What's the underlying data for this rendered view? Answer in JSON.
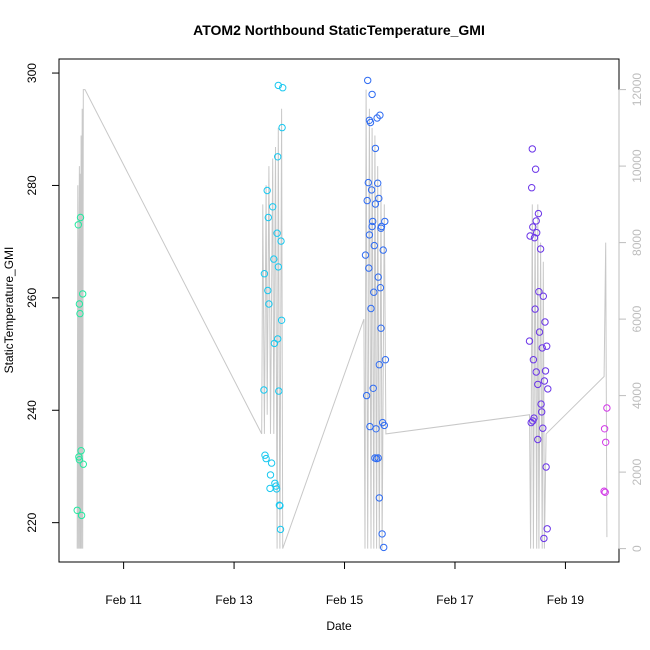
{
  "chart_data": {
    "type": "scatter",
    "title": "ATOM2 Northbound StaticTemperature_GMI",
    "xlabel": "Date",
    "ylabel": "StaticTemperature_GMI",
    "xlim_days": [
      9.83,
      19.97
    ],
    "ylim": [
      213.0,
      302.5
    ],
    "y2lim": [
      -350,
      12800
    ],
    "x_ticks": [
      {
        "day": 11,
        "label": "Feb 11"
      },
      {
        "day": 13,
        "label": "Feb 13"
      },
      {
        "day": 15,
        "label": "Feb 15"
      },
      {
        "day": 17,
        "label": "Feb 17"
      },
      {
        "day": 19,
        "label": "Feb 19"
      }
    ],
    "y_ticks": [
      220,
      240,
      260,
      280,
      300
    ],
    "y2_ticks": [
      0,
      2000,
      4000,
      6000,
      8000,
      10000,
      12000
    ],
    "grid": false,
    "legend": "none",
    "colors": {
      "secondary_axis": "#bdbdbd",
      "altitude_line": "#c8c8c8"
    },
    "series": [
      {
        "color": "#22e8a0",
        "points": [
          [
            10.16,
            222.2
          ],
          [
            10.18,
            273.0
          ],
          [
            10.2,
            258.9
          ],
          [
            10.22,
            274.3
          ],
          [
            10.21,
            257.2
          ],
          [
            10.26,
            260.7
          ],
          [
            10.19,
            231.7
          ],
          [
            10.2,
            231.2
          ],
          [
            10.23,
            232.8
          ],
          [
            10.27,
            230.4
          ],
          [
            10.24,
            221.3
          ]
        ]
      },
      {
        "color": "#18c8f0",
        "points": [
          [
            13.54,
            243.6
          ],
          [
            13.55,
            264.3
          ],
          [
            13.56,
            232.0
          ],
          [
            13.58,
            231.4
          ],
          [
            13.6,
            279.1
          ],
          [
            13.61,
            261.3
          ],
          [
            13.62,
            274.3
          ],
          [
            13.63,
            258.9
          ],
          [
            13.65,
            226.1
          ],
          [
            13.66,
            228.5
          ],
          [
            13.68,
            230.6
          ],
          [
            13.7,
            276.2
          ],
          [
            13.72,
            266.9
          ],
          [
            13.73,
            251.9
          ],
          [
            13.74,
            227.0
          ],
          [
            13.76,
            226.5
          ],
          [
            13.77,
            226.0
          ],
          [
            13.78,
            271.5
          ],
          [
            13.79,
            285.1
          ],
          [
            13.79,
            252.7
          ],
          [
            13.8,
            265.5
          ],
          [
            13.8,
            297.8
          ],
          [
            13.81,
            243.4
          ],
          [
            13.82,
            223.1
          ],
          [
            13.83,
            223.0
          ],
          [
            13.84,
            218.8
          ],
          [
            13.85,
            270.1
          ],
          [
            13.86,
            256.0
          ],
          [
            13.87,
            290.3
          ],
          [
            13.88,
            297.4
          ]
        ]
      },
      {
        "color": "#2f6cf2",
        "points": [
          [
            15.38,
            267.6
          ],
          [
            15.4,
            242.6
          ],
          [
            15.41,
            277.3
          ],
          [
            15.42,
            298.7
          ],
          [
            15.43,
            280.5
          ],
          [
            15.44,
            265.3
          ],
          [
            15.45,
            271.2
          ],
          [
            15.45,
            291.6
          ],
          [
            15.46,
            237.1
          ],
          [
            15.47,
            291.2
          ],
          [
            15.48,
            258.1
          ],
          [
            15.49,
            279.2
          ],
          [
            15.5,
            272.7
          ],
          [
            15.5,
            296.2
          ],
          [
            15.51,
            273.6
          ],
          [
            15.52,
            243.9
          ],
          [
            15.53,
            261.0
          ],
          [
            15.54,
            269.3
          ],
          [
            15.55,
            231.5
          ],
          [
            15.56,
            286.6
          ],
          [
            15.56,
            276.7
          ],
          [
            15.57,
            236.7
          ],
          [
            15.58,
            231.4
          ],
          [
            15.59,
            292.0
          ],
          [
            15.6,
            280.4
          ],
          [
            15.61,
            263.7
          ],
          [
            15.61,
            231.5
          ],
          [
            15.62,
            277.7
          ],
          [
            15.63,
            224.4
          ],
          [
            15.63,
            248.1
          ],
          [
            15.64,
            292.5
          ],
          [
            15.65,
            261.8
          ],
          [
            15.66,
            272.4
          ],
          [
            15.66,
            254.6
          ],
          [
            15.67,
            272.7
          ],
          [
            15.68,
            218.0
          ],
          [
            15.69,
            237.8
          ],
          [
            15.7,
            268.5
          ],
          [
            15.71,
            215.6
          ],
          [
            15.72,
            237.3
          ],
          [
            15.73,
            273.6
          ],
          [
            15.74,
            249.0
          ]
        ]
      },
      {
        "color": "#6a34e8",
        "points": [
          [
            18.35,
            252.3
          ],
          [
            18.36,
            271.0
          ],
          [
            18.38,
            237.8
          ],
          [
            18.39,
            279.6
          ],
          [
            18.4,
            286.5
          ],
          [
            18.41,
            272.6
          ],
          [
            18.41,
            238.1
          ],
          [
            18.42,
            249.0
          ],
          [
            18.43,
            238.6
          ],
          [
            18.44,
            270.7
          ],
          [
            18.45,
            258.0
          ],
          [
            18.46,
            282.9
          ],
          [
            18.47,
            273.7
          ],
          [
            18.47,
            246.8
          ],
          [
            18.48,
            271.6
          ],
          [
            18.5,
            244.6
          ],
          [
            18.5,
            234.8
          ],
          [
            18.51,
            275.0
          ],
          [
            18.52,
            261.1
          ],
          [
            18.53,
            253.9
          ],
          [
            18.55,
            268.7
          ],
          [
            18.56,
            241.1
          ],
          [
            18.57,
            239.7
          ],
          [
            18.58,
            251.1
          ],
          [
            18.59,
            236.8
          ],
          [
            18.6,
            260.3
          ],
          [
            18.61,
            217.2
          ],
          [
            18.62,
            245.2
          ],
          [
            18.63,
            255.7
          ],
          [
            18.64,
            247.0
          ],
          [
            18.65,
            229.9
          ],
          [
            18.66,
            251.4
          ],
          [
            18.67,
            218.9
          ],
          [
            18.68,
            243.8
          ]
        ]
      },
      {
        "color": "#d238e8",
        "points": [
          [
            19.7,
            225.6
          ],
          [
            19.71,
            236.7
          ],
          [
            19.72,
            225.4
          ],
          [
            19.73,
            234.3
          ],
          [
            19.75,
            240.4
          ]
        ]
      }
    ],
    "altitude_line": {
      "axis": "y2",
      "points": [
        [
          10.16,
          0
        ],
        [
          10.17,
          9500
        ],
        [
          10.18,
          0
        ],
        [
          10.19,
          8000
        ],
        [
          10.2,
          10000
        ],
        [
          10.2,
          0
        ],
        [
          10.21,
          9800
        ],
        [
          10.22,
          0
        ],
        [
          10.23,
          10800
        ],
        [
          10.24,
          0
        ],
        [
          10.25,
          11500
        ],
        [
          10.26,
          0
        ],
        [
          10.27,
          12000
        ],
        [
          10.3,
          12000
        ],
        [
          13.5,
          3000
        ],
        [
          13.52,
          9000
        ],
        [
          13.55,
          3000
        ],
        [
          13.58,
          9500
        ],
        [
          13.6,
          3500
        ],
        [
          13.63,
          10000
        ],
        [
          13.66,
          3000
        ],
        [
          13.7,
          10200
        ],
        [
          13.72,
          3000
        ],
        [
          13.75,
          10500
        ],
        [
          13.78,
          0
        ],
        [
          13.8,
          11000
        ],
        [
          13.83,
          0
        ],
        [
          13.86,
          11500
        ],
        [
          13.88,
          0
        ],
        [
          15.35,
          6000
        ],
        [
          15.37,
          0
        ],
        [
          15.39,
          12000
        ],
        [
          15.42,
          0
        ],
        [
          15.45,
          11500
        ],
        [
          15.48,
          0
        ],
        [
          15.5,
          11000
        ],
        [
          15.53,
          0
        ],
        [
          15.55,
          10800
        ],
        [
          15.58,
          0
        ],
        [
          15.6,
          10000
        ],
        [
          15.63,
          0
        ],
        [
          15.66,
          9500
        ],
        [
          15.68,
          0
        ],
        [
          15.72,
          9000
        ],
        [
          15.75,
          3000
        ],
        [
          18.35,
          3500
        ],
        [
          18.37,
          0
        ],
        [
          18.4,
          9000
        ],
        [
          18.42,
          0
        ],
        [
          18.45,
          8500
        ],
        [
          18.48,
          0
        ],
        [
          18.5,
          9000
        ],
        [
          18.52,
          0
        ],
        [
          18.55,
          8000
        ],
        [
          18.58,
          0
        ],
        [
          18.6,
          7500
        ],
        [
          18.62,
          0
        ],
        [
          18.65,
          3000
        ],
        [
          19.7,
          4500
        ],
        [
          19.73,
          8000
        ],
        [
          19.75,
          300
        ]
      ]
    }
  }
}
